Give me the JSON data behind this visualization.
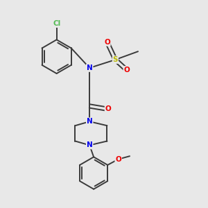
{
  "background_color": "#e8e8e8",
  "bond_color": "#3a3a3a",
  "bond_width": 1.4,
  "atom_colors": {
    "C": "#3a3a3a",
    "N": "#0000ee",
    "O": "#ee0000",
    "S": "#bbbb00",
    "Cl": "#55bb55"
  },
  "font_size": 7.5,
  "figsize": [
    3.0,
    3.0
  ],
  "dpi": 100,
  "xlim": [
    0,
    10
  ],
  "ylim": [
    0,
    10
  ]
}
